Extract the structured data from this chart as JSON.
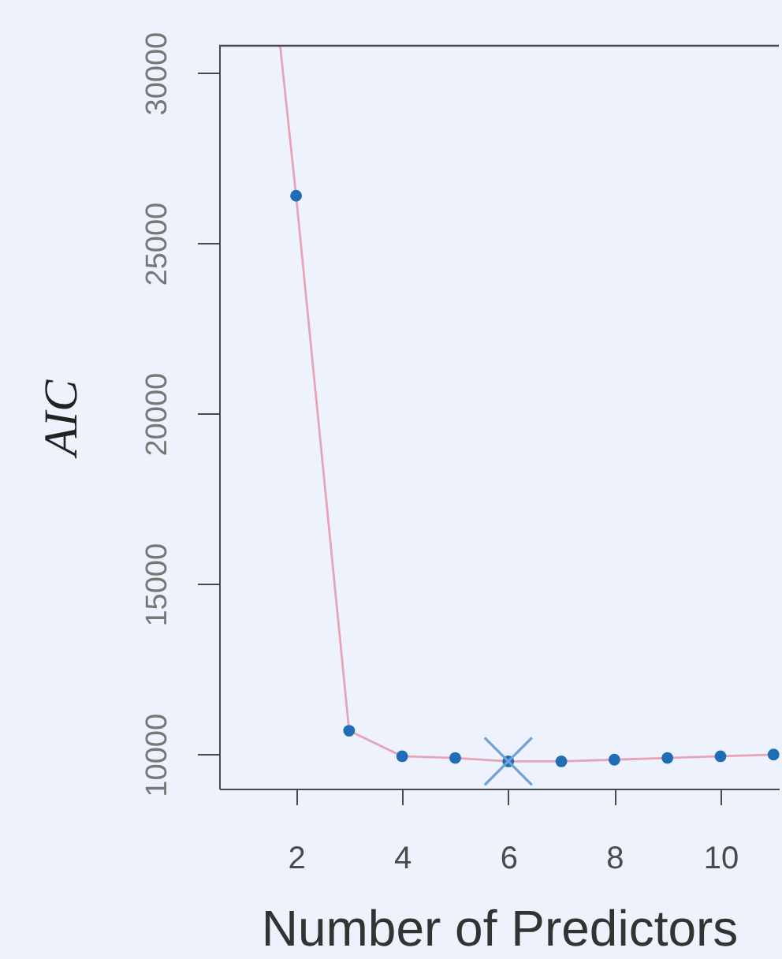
{
  "chart_data": {
    "type": "line",
    "xlabel": "Number of Predictors",
    "ylabel": "AIC",
    "xlim": [
      0.55,
      11.1
    ],
    "ylim": [
      9000,
      30800
    ],
    "xticks": [
      2,
      4,
      6,
      8,
      10
    ],
    "yticks": [
      10000,
      15000,
      20000,
      25000,
      30000
    ],
    "grid": false,
    "series": [
      {
        "color": "#e8a3b8",
        "marker": "none",
        "line_style": "solid",
        "x": [
          1.7,
          2,
          3,
          4,
          5,
          6,
          7,
          8,
          9,
          10,
          11
        ],
        "values": [
          30800,
          26400,
          10700,
          9950,
          9900,
          9800,
          9800,
          9850,
          9900,
          9950,
          10000
        ]
      },
      {
        "type": "scatter",
        "color": "#1f6db5",
        "marker": "circle",
        "x": [
          2,
          3,
          4,
          5,
          6,
          7,
          8,
          9,
          10,
          11
        ],
        "values": [
          26400,
          10700,
          9950,
          9900,
          9800,
          9800,
          9850,
          9900,
          9950,
          10000
        ]
      },
      {
        "type": "scatter",
        "color": "#6aa3d8",
        "marker": "cross",
        "x": [
          6
        ],
        "values": [
          9800
        ]
      }
    ]
  }
}
